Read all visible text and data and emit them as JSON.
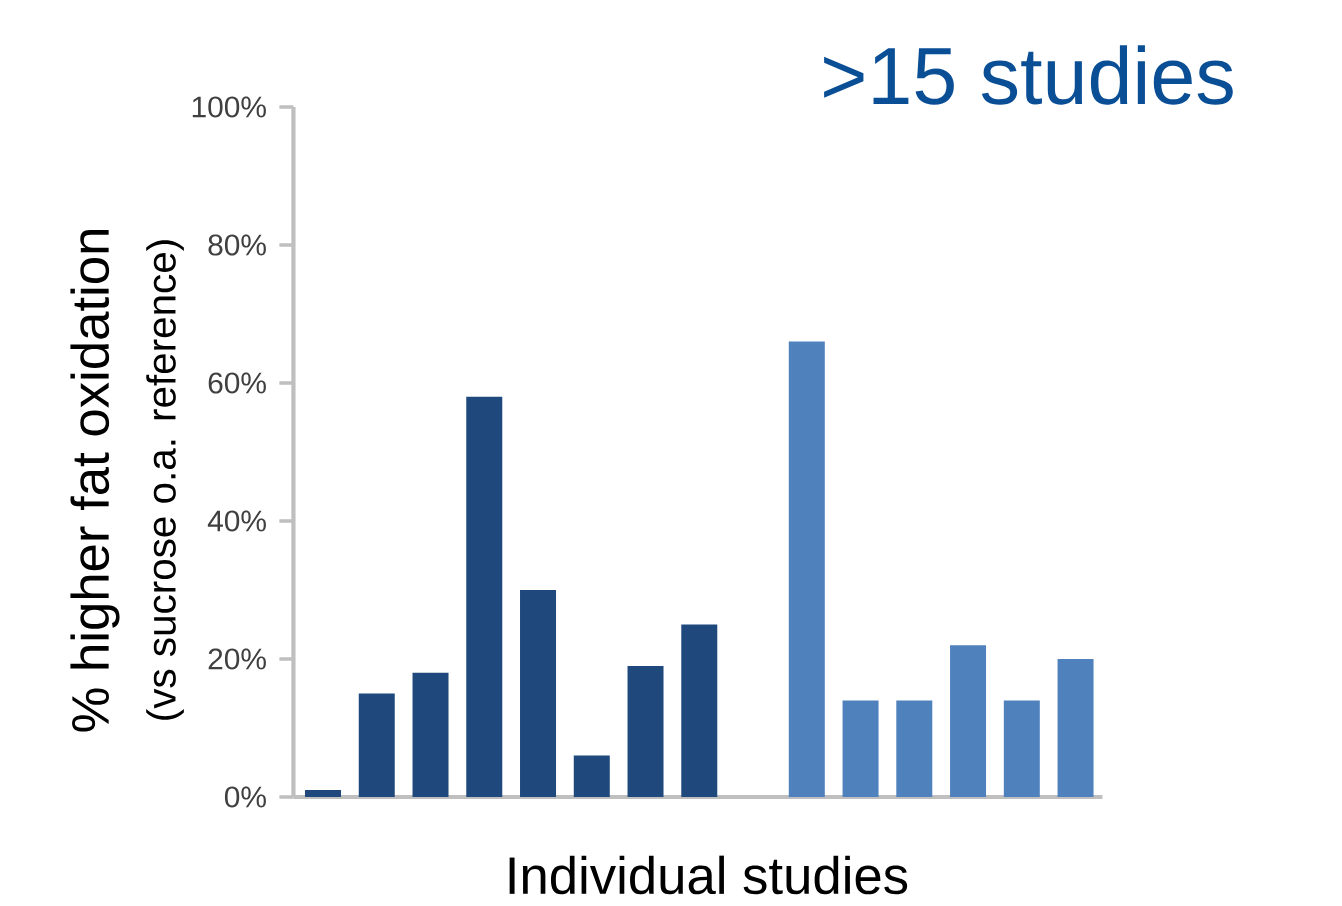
{
  "chart_data": {
    "type": "bar",
    "title": ">15 studies",
    "xlabel": "Individual studies",
    "ylabel": "% higher fat oxidation",
    "annotations": [
      "(vs sucrose o.a. reference)"
    ],
    "categories": [
      null,
      null,
      null,
      null,
      null,
      null,
      null,
      null,
      null,
      null,
      null,
      null,
      null,
      null,
      null
    ],
    "values": [
      1,
      15,
      18,
      58,
      30,
      6,
      19,
      25,
      null,
      66,
      14,
      14,
      22,
      14,
      20
    ],
    "colors": [
      "#1f497d",
      "#1f497d",
      "#1f497d",
      "#1f497d",
      "#1f497d",
      "#1f497d",
      "#1f497d",
      "#1f497d",
      null,
      "#4f81bd",
      "#4f81bd",
      "#4f81bd",
      "#4f81bd",
      "#4f81bd",
      "#4f81bd"
    ],
    "ylim": [
      0,
      100
    ],
    "yticks": [
      {
        "value": 0,
        "label": "0%"
      },
      {
        "value": 20,
        "label": "20%"
      },
      {
        "value": 40,
        "label": "40%"
      },
      {
        "value": 60,
        "label": "60%"
      },
      {
        "value": 80,
        "label": "80%"
      },
      {
        "value": 100,
        "label": "100%"
      }
    ]
  }
}
